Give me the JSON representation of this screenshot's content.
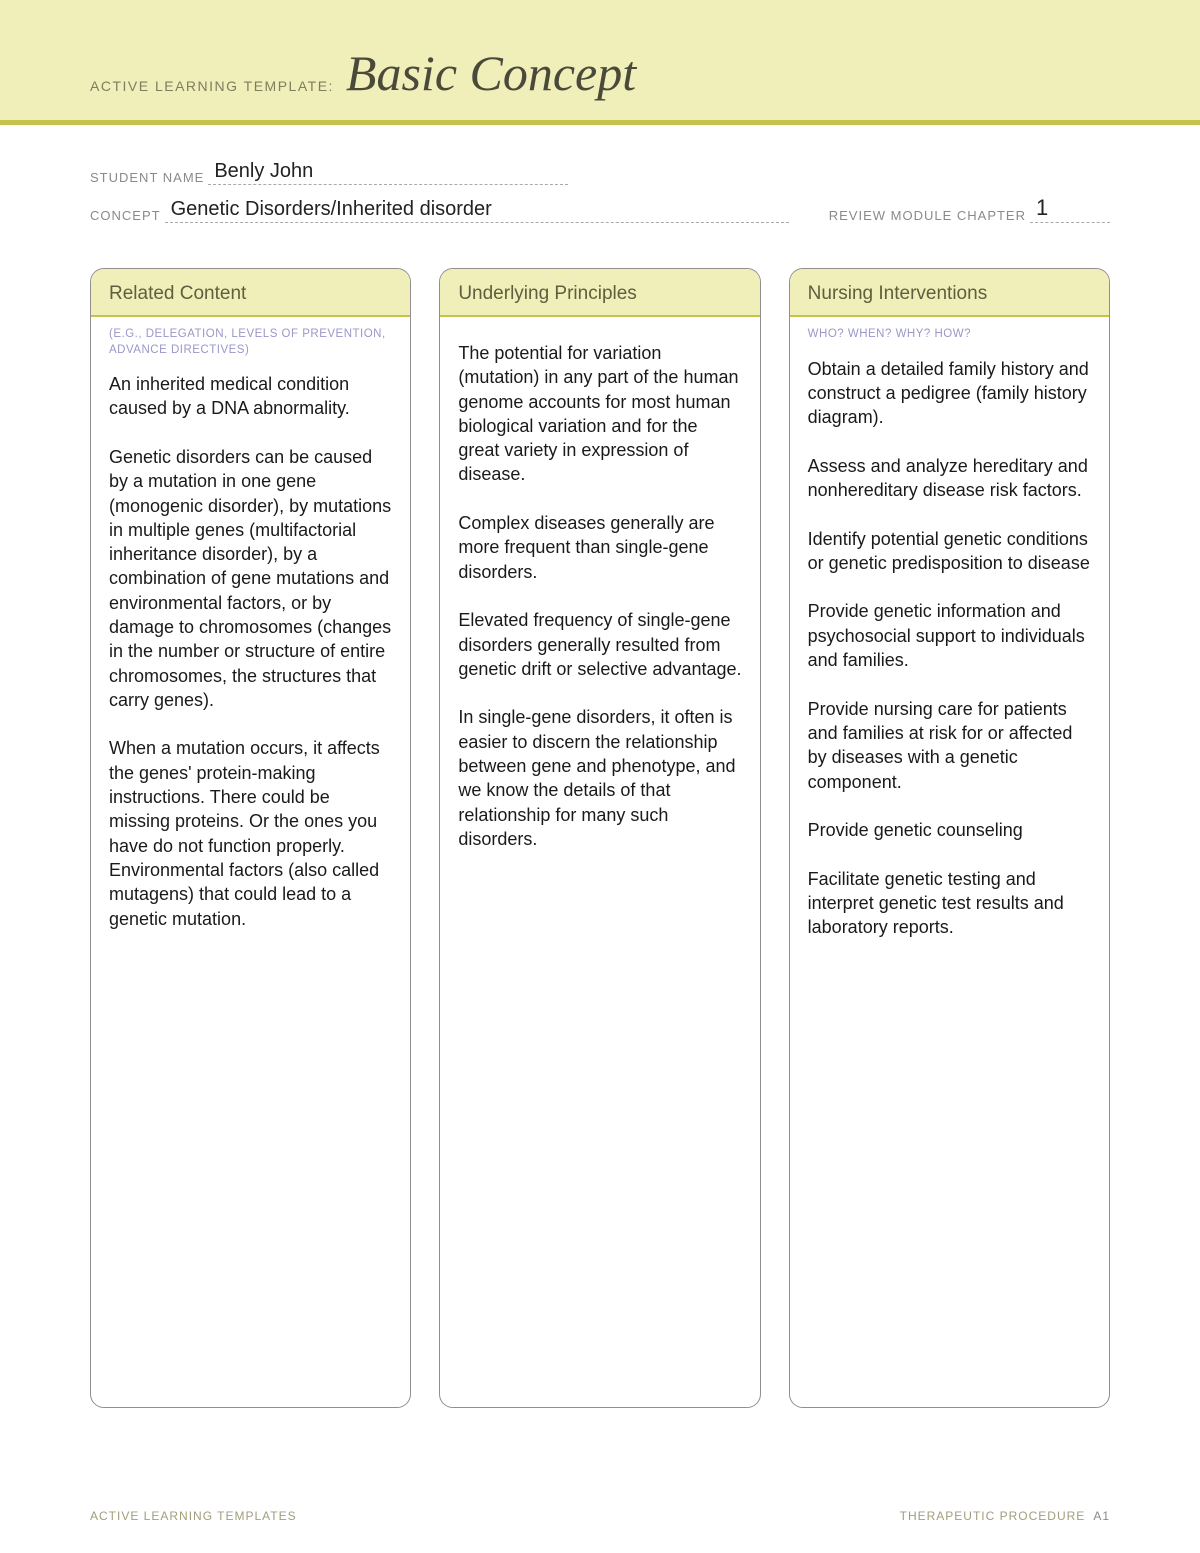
{
  "colors": {
    "banner_bg": "#f0eeb9",
    "accent": "#c6c24a",
    "banner_label": "#7f7d5f",
    "banner_title": "#4a4a3a",
    "form_label": "#8a8a8a",
    "col_border": "#8f8f8f",
    "col_header_text": "#5f5e3e",
    "subhead_text": "#9a97c9",
    "body_text": "#1a1a1a",
    "footer_text": "#a09e7a"
  },
  "banner": {
    "label": "ACTIVE LEARNING TEMPLATE:",
    "title": "Basic Concept"
  },
  "form": {
    "student_label": "STUDENT NAME",
    "student_value": "Benly John",
    "concept_label": "CONCEPT",
    "concept_value": "Genetic Disorders/Inherited disorder",
    "chapter_label": "REVIEW MODULE CHAPTER",
    "chapter_value": "1"
  },
  "columns": [
    {
      "title": "Related Content",
      "subtitle": "(E.G., DELEGATION,\nLEVELS OF PREVENTION,\nADVANCE DIRECTIVES)",
      "body": "An inherited medical condition caused by a DNA abnormality.\n\nGenetic disorders can be caused by a mutation in one gene (monogenic disorder), by mutations in multiple genes (multifactorial inheritance disorder), by a combination of gene mutations and environmental factors, or by damage to chromosomes (changes in the number or structure of entire chromosomes, the structures that carry genes).\n\nWhen a mutation occurs, it affects the genes' protein-making instructions. There could be missing proteins. Or the ones you have do not function properly. Environmental factors (also called mutagens) that could lead to a genetic mutation."
    },
    {
      "title": "Underlying Principles",
      "subtitle": "",
      "body": "The potential for variation (mutation) in any part of the human genome accounts for most human biological variation and for the great variety in expression of disease.\n\nComplex diseases generally are more frequent than single-gene disorders.\n\nElevated frequency of single-gene disorders generally resulted from genetic drift or selective advantage.\n\nIn single-gene disorders, it often is easier to discern the relationship between gene and phenotype, and we know the details of that relationship for many such disorders."
    },
    {
      "title": "Nursing Interventions",
      "subtitle": "WHO? WHEN? WHY? HOW?",
      "body": "Obtain a detailed family history and construct a pedigree (family history diagram).\n\nAssess and analyze hereditary and nonhereditary disease risk factors.\n\nIdentify potential genetic conditions or genetic predisposition to disease\n\nProvide genetic information and psychosocial support to individuals and families.\n\nProvide nursing care for patients and families at risk for or affected by diseases with a genetic component.\n\nProvide genetic counseling\n\nFacilitate genetic testing and interpret genetic test results and laboratory reports."
    }
  ],
  "footer": {
    "left": "ACTIVE LEARNING TEMPLATES",
    "right_label": "THERAPEUTIC PROCEDURE",
    "right_code": "A1"
  }
}
